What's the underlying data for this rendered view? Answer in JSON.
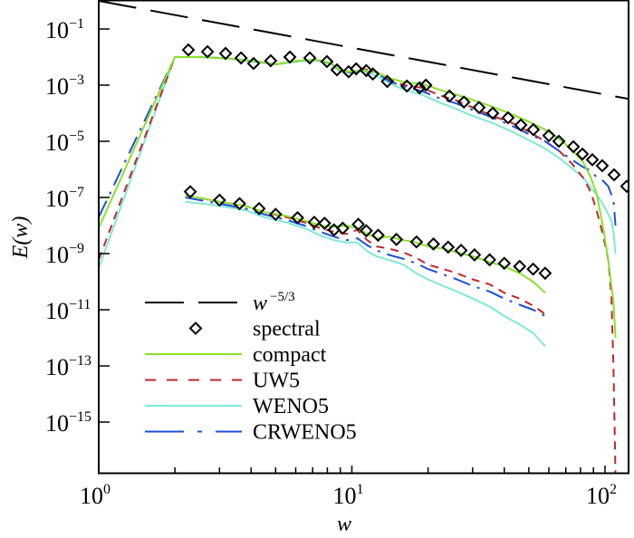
{
  "chart_data": {
    "type": "line",
    "title": "",
    "xlabel": "w",
    "ylabel": "E(w)",
    "xscale": "log",
    "yscale": "log",
    "xlim": [
      1,
      124
    ],
    "ylim": [
      1e-17,
      1
    ],
    "grid": false,
    "legend_position": "bottom-left",
    "x_ticks": [
      {
        "value": 1,
        "base": "10",
        "exp": "0"
      },
      {
        "value": 10,
        "base": "10",
        "exp": "1"
      },
      {
        "value": 100,
        "base": "10",
        "exp": "2"
      }
    ],
    "y_ticks": [
      {
        "value": 0.1,
        "base": "10",
        "exp": "−1"
      },
      {
        "value": 0.001,
        "base": "10",
        "exp": "−3"
      },
      {
        "value": 1e-05,
        "base": "10",
        "exp": "−5"
      },
      {
        "value": 1e-07,
        "base": "10",
        "exp": "−7"
      },
      {
        "value": 1e-09,
        "base": "10",
        "exp": "−9"
      },
      {
        "value": 1e-11,
        "base": "10",
        "exp": "−11"
      },
      {
        "value": 1e-13,
        "base": "10",
        "exp": "−13"
      },
      {
        "value": 1e-15,
        "base": "10",
        "exp": "−15"
      }
    ],
    "series": [
      {
        "name": "w^-5/3",
        "legend_label": "w",
        "legend_sup": "−5/3",
        "style": "long-dash",
        "color": "#000000",
        "x": [
          1,
          100
        ],
        "y": [
          1,
          0.000464
        ]
      },
      {
        "name": "spectral",
        "legend_label": "spectral",
        "style": "diamond-marker",
        "color": "#000000",
        "x": [
          2.26,
          2.69,
          3.17,
          3.65,
          4.09,
          4.78,
          5.69,
          6.82,
          7.97,
          8.73,
          9.71,
          10.4,
          11.4,
          12.1,
          13.8,
          16.5,
          18.5,
          19.6,
          24.3,
          27.7,
          31.8,
          36.0,
          41.4,
          46.5,
          52.1,
          60.0,
          65.7,
          75.0,
          81.4,
          89.1,
          97.5,
          108.6,
          121.8
        ],
        "y": [
          0.018,
          0.0155,
          0.0135,
          0.0093,
          0.0059,
          0.0074,
          0.01,
          0.0093,
          0.0069,
          0.0035,
          0.003,
          0.0038,
          0.0033,
          0.0025,
          0.00135,
          0.00093,
          0.0008,
          0.001,
          0.00041,
          0.00025,
          0.00016,
          0.0001,
          6.9e-05,
          3.8e-05,
          2.6e-05,
          1.6e-05,
          1e-05,
          6.4e-06,
          3.5e-06,
          2.2e-06,
          1.35e-06,
          6.4e-07,
          2.5e-07
        ]
      },
      {
        "name": "compact",
        "legend_label": "compact",
        "style": "solid",
        "color": "#8CE02A",
        "x": [
          1,
          2,
          2.5,
          3.2,
          4.2,
          5.0,
          6.2,
          7.2,
          8.3,
          9.0,
          10.0,
          11.0,
          12.5,
          14,
          16,
          19,
          22,
          26,
          30,
          36,
          43,
          50,
          58,
          66,
          74,
          82,
          88,
          93,
          98,
          103,
          108,
          110
        ],
        "y": [
          8e-09,
          0.01,
          0.01,
          0.009,
          0.007,
          0.0055,
          0.0075,
          0.008,
          0.006,
          0.0032,
          0.003,
          0.0035,
          0.0028,
          0.0018,
          0.0013,
          0.0011,
          0.0007,
          0.00045,
          0.0003,
          0.00017,
          9e-05,
          5e-05,
          2.6e-05,
          1.2e-05,
          5e-06,
          1.8e-06,
          5e-07,
          1.2e-07,
          1e-08,
          6e-10,
          2e-11,
          1e-12
        ]
      },
      {
        "name": "UW5",
        "legend_label": "UW5",
        "style": "short-dash",
        "color": "#C0272D",
        "x": [
          1,
          2,
          2.5,
          3.2,
          4.2,
          5.0,
          6.2,
          7.2,
          8.3,
          9.0,
          10.0,
          11.0,
          12.5,
          14,
          16,
          19,
          22,
          26,
          30,
          36,
          43,
          50,
          58,
          66,
          74,
          82,
          88,
          93,
          98,
          103,
          106,
          108,
          109,
          110
        ],
        "y": [
          6e-10,
          0.01,
          0.01,
          0.009,
          0.007,
          0.0055,
          0.0075,
          0.008,
          0.006,
          0.0032,
          0.003,
          0.0038,
          0.003,
          0.0016,
          0.001,
          0.0008,
          0.00045,
          0.00028,
          0.00016,
          8e-05,
          4.5e-05,
          2.2e-05,
          1e-05,
          4.5e-06,
          1.6e-06,
          5e-07,
          1.5e-07,
          3e-08,
          5e-09,
          6e-10,
          3e-11,
          1e-13,
          1e-15,
          1e-17
        ]
      },
      {
        "name": "WENO5",
        "legend_label": "WENO5",
        "style": "solid",
        "color": "#7FE8D8",
        "x": [
          1,
          2,
          2.5,
          3.2,
          4.2,
          5.0,
          6.2,
          7.2,
          8.3,
          9.0,
          10.0,
          11.0,
          12.5,
          14,
          16,
          19,
          22,
          26,
          30,
          36,
          43,
          50,
          58,
          66,
          74,
          82,
          88,
          93,
          98,
          103,
          106,
          108,
          110
        ],
        "y": [
          3e-10,
          0.01,
          0.01,
          0.009,
          0.0065,
          0.0055,
          0.007,
          0.0075,
          0.0055,
          0.003,
          0.0028,
          0.0032,
          0.0022,
          0.0012,
          0.0007,
          0.00045,
          0.00025,
          0.00014,
          8e-05,
          4.5e-05,
          2.2e-05,
          1.1e-05,
          5.5e-06,
          2.5e-06,
          1.1e-06,
          5e-07,
          2.2e-07,
          1.2e-07,
          6e-08,
          2.5e-08,
          1.5e-08,
          6e-09,
          1e-09
        ]
      },
      {
        "name": "CRWENO5",
        "legend_label": "CRWENO5",
        "style": "dash-dot",
        "color": "#1E4FD8",
        "x": [
          1,
          2,
          2.5,
          3.2,
          4.2,
          5.0,
          6.2,
          7.2,
          8.3,
          9.0,
          10.0,
          11.0,
          12.5,
          14,
          16,
          19,
          22,
          26,
          30,
          36,
          43,
          50,
          58,
          66,
          74,
          82,
          88,
          93,
          98,
          103,
          108,
          110
        ],
        "y": [
          2e-08,
          0.01,
          0.01,
          0.009,
          0.007,
          0.0055,
          0.0075,
          0.008,
          0.006,
          0.0032,
          0.0028,
          0.0035,
          0.0028,
          0.0014,
          0.0009,
          0.0006,
          0.00035,
          0.00022,
          0.00013,
          7e-05,
          3.5e-05,
          1.8e-05,
          1e-05,
          4.5e-06,
          2.2e-06,
          1.2e-06,
          9e-07,
          5e-07,
          4e-07,
          2.5e-07,
          8e-08,
          1e-08
        ]
      }
    ],
    "inset_series": [
      {
        "name": "spectral (shifted)",
        "style": "diamond-marker",
        "color": "#000000",
        "x": [
          2.3,
          3.0,
          3.6,
          4.3,
          5.0,
          6.1,
          7.1,
          7.8,
          8.5,
          9.2,
          10.6,
          11.4,
          12.7,
          15.0,
          18.0,
          21.0,
          24.0,
          27.0,
          30.5,
          35.0,
          40.0,
          46.0,
          52.0,
          58.0
        ],
        "y": [
          1.6e-07,
          8e-08,
          6e-08,
          4e-08,
          2.5e-08,
          1.9e-08,
          1.3e-08,
          1.2e-08,
          7e-09,
          8e-09,
          1.1e-08,
          6.5e-09,
          4.5e-09,
          3.2e-09,
          2.6e-09,
          2.2e-09,
          1.7e-09,
          1.3e-09,
          9e-10,
          6e-10,
          4.5e-10,
          3.5e-10,
          2.8e-10,
          2e-10
        ]
      },
      {
        "name": "compact (shifted)",
        "style": "solid",
        "color": "#8CE02A",
        "x": [
          2.2,
          3.0,
          3.8,
          4.5,
          5.5,
          6.5,
          7.5,
          8.5,
          9.5,
          10.5,
          11.5,
          12.5,
          14,
          16,
          18,
          20,
          23,
          26,
          30,
          35,
          40,
          46,
          52,
          58
        ],
        "y": [
          1.2e-07,
          7e-08,
          5e-08,
          3e-08,
          2.2e-08,
          1.5e-08,
          1e-08,
          9e-09,
          1e-08,
          8e-09,
          5e-09,
          3.5e-09,
          4e-09,
          3e-09,
          2.5e-09,
          1.8e-09,
          1.5e-09,
          1.1e-09,
          8e-10,
          5e-10,
          3.5e-10,
          2e-10,
          1e-10,
          4e-11
        ]
      },
      {
        "name": "UW5 (shifted)",
        "style": "short-dash",
        "color": "#C0272D",
        "x": [
          2.2,
          3.0,
          3.8,
          4.5,
          5.5,
          6.5,
          7.5,
          8.5,
          9.5,
          10.5,
          11.5,
          12.5,
          14,
          16,
          18,
          20,
          23,
          26,
          30,
          35,
          40,
          46,
          52,
          58
        ],
        "y": [
          1.2e-07,
          7e-08,
          5e-08,
          3e-08,
          2e-08,
          1.3e-08,
          8e-09,
          6e-09,
          5e-09,
          7e-09,
          3e-09,
          1.8e-09,
          1.5e-09,
          1.1e-09,
          7e-10,
          4e-10,
          2.8e-10,
          2e-10,
          1.2e-10,
          8e-11,
          4e-11,
          2.5e-11,
          1.4e-11,
          7e-12
        ]
      },
      {
        "name": "WENO5 (shifted)",
        "style": "solid",
        "color": "#7FE8D8",
        "x": [
          2.2,
          3.0,
          3.8,
          4.5,
          5.5,
          6.5,
          7.5,
          8.5,
          9.5,
          10.5,
          11.5,
          12.5,
          14,
          16,
          18,
          20,
          23,
          26,
          30,
          35,
          40,
          46,
          52,
          58
        ],
        "y": [
          7e-08,
          5e-08,
          3.5e-08,
          2e-08,
          1.3e-08,
          8e-09,
          4.5e-09,
          3e-09,
          2.5e-09,
          2.5e-09,
          1.2e-09,
          8e-10,
          6e-10,
          4e-10,
          2e-10,
          1.2e-10,
          7e-11,
          4.5e-11,
          2.5e-11,
          1.3e-11,
          6e-12,
          3e-12,
          1.5e-12,
          5e-13
        ]
      },
      {
        "name": "CRWENO5 (shifted)",
        "style": "dash-dot",
        "color": "#1E4FD8",
        "x": [
          2.2,
          3.0,
          3.8,
          4.5,
          5.5,
          6.5,
          7.5,
          8.5,
          9.5,
          10.5,
          11.5,
          12.5,
          14,
          16,
          18,
          20,
          23,
          26,
          30,
          35,
          40,
          46,
          52,
          58
        ],
        "y": [
          1e-07,
          6e-08,
          4e-08,
          2.5e-08,
          1.6e-08,
          1e-08,
          6e-09,
          4e-09,
          3e-09,
          3.5e-09,
          2e-09,
          1.3e-09,
          9e-10,
          6.5e-10,
          4.5e-10,
          2.8e-10,
          1.8e-10,
          1.2e-10,
          7e-11,
          4.5e-11,
          2.5e-11,
          1.5e-11,
          1e-11,
          6e-12
        ]
      }
    ]
  }
}
